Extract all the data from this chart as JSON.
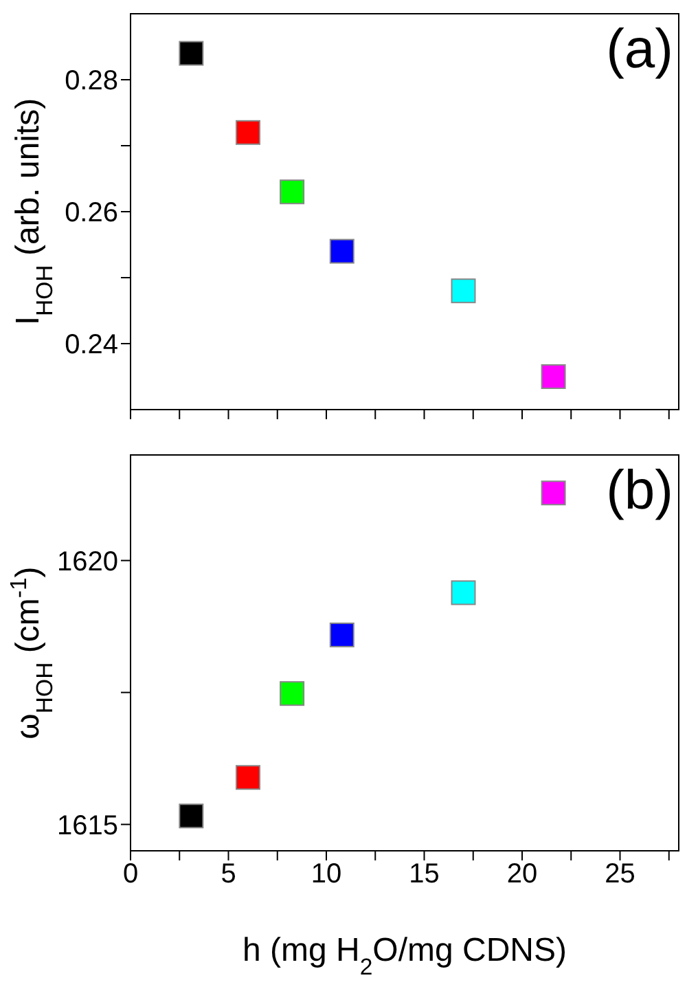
{
  "chart_data": [
    {
      "type": "scatter",
      "ylabel": "I$_{HOH}$ (arb. units)",
      "annotations": [
        "(a)"
      ],
      "marker": "square",
      "grid": false,
      "tick_labels": "y",
      "x": [
        3.1,
        6.0,
        8.25,
        10.8,
        17.0,
        21.6
      ],
      "values": [
        0.284,
        0.272,
        0.263,
        0.254,
        0.248,
        0.235
      ],
      "colors": [
        "#000000",
        "#ff0000",
        "#00ff00",
        "#0000ff",
        "#00ffff",
        "#ff00ff"
      ],
      "xlim": [
        0,
        28
      ],
      "xticks": [
        0,
        {
          "value": 2.5,
          "label": null
        },
        5,
        {
          "value": 7.5,
          "label": null
        },
        10,
        {
          "value": 12.5,
          "label": null
        },
        15,
        {
          "value": 17.5,
          "label": null
        },
        20,
        {
          "value": 22.5,
          "label": null
        },
        25,
        {
          "value": 27.5,
          "label": null
        }
      ],
      "ylim": [
        0.23,
        0.29
      ],
      "yticks": [
        0.24,
        {
          "value": 0.25,
          "label": null
        },
        0.26,
        {
          "value": 0.27,
          "label": null
        },
        0.28
      ]
    },
    {
      "type": "scatter",
      "ylabel": "ω$_{HOH}$ (cm$^{-1}$)",
      "xlabel": "h (mg H$_{2}$O/mg CDNS)",
      "annotations": [
        "(b)"
      ],
      "marker": "square",
      "grid": false,
      "x": [
        3.1,
        6.0,
        8.25,
        10.8,
        17.0,
        21.6
      ],
      "values": [
        1615.16,
        1615.89,
        1617.48,
        1618.59,
        1619.39,
        1621.28
      ],
      "colors": [
        "#000000",
        "#ff0000",
        "#00ff00",
        "#0000ff",
        "#00ffff",
        "#ff00ff"
      ],
      "xlim": [
        0,
        28
      ],
      "xticks": [
        0,
        {
          "value": 2.5,
          "label": null
        },
        5,
        {
          "value": 7.5,
          "label": null
        },
        10,
        {
          "value": 12.5,
          "label": null
        },
        15,
        {
          "value": 17.5,
          "label": null
        },
        20,
        {
          "value": 22.5,
          "label": null
        },
        25,
        {
          "value": 27.5,
          "label": null
        }
      ],
      "ylim": [
        1614.5,
        1622
      ],
      "yticks": [
        1615,
        {
          "value": 1617.5,
          "label": null
        },
        1620
      ]
    }
  ]
}
